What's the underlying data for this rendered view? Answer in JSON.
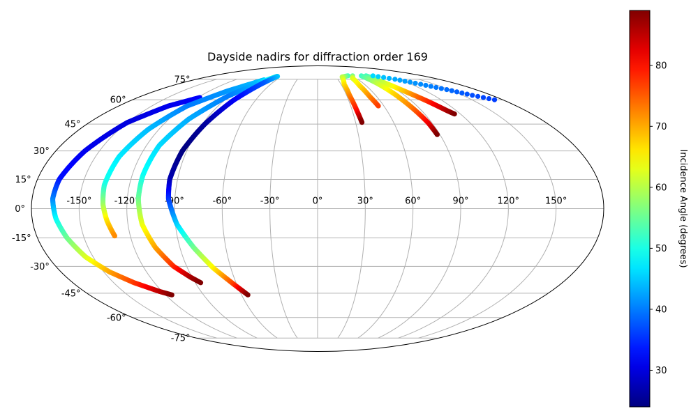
{
  "chart_data": {
    "type": "scatter",
    "projection": "mollweide",
    "title": "Dayside nadirs for diffraction order 169",
    "xlabel": "",
    "ylabel": "",
    "xlim": [
      -180,
      180
    ],
    "ylim": [
      -90,
      90
    ],
    "grid": true,
    "lon_ticks": [
      -150,
      -120,
      -90,
      -60,
      -30,
      0,
      30,
      60,
      90,
      120,
      150
    ],
    "lat_ticks": [
      -75,
      -60,
      -45,
      -30,
      -15,
      0,
      15,
      30,
      45,
      60,
      75
    ],
    "lon_tick_labels": [
      "-150°",
      "-120°",
      "-90°",
      "-60°",
      "-30°",
      "0°",
      "30°",
      "60°",
      "90°",
      "120°",
      "150°"
    ],
    "lat_tick_labels": [
      "-75°",
      "-60°",
      "-45°",
      "-30°",
      "-15°",
      "0°",
      "15°",
      "30°",
      "45°",
      "60°",
      "75°"
    ],
    "colorbar": {
      "label": "Incidence Angle (degrees)",
      "colormap": "jet",
      "min": 24,
      "max": 89,
      "ticks": [
        30,
        40,
        50,
        60,
        70,
        80
      ],
      "tick_labels": [
        "30",
        "40",
        "50",
        "60",
        "70",
        "80"
      ]
    },
    "series": [
      {
        "points": [
          [
            -118,
            61.5,
            32
          ],
          [
            -135,
            56,
            31
          ],
          [
            -150,
            46,
            30
          ],
          [
            -160,
            30,
            31
          ],
          [
            -166,
            15,
            33
          ],
          [
            -167,
            5,
            40
          ],
          [
            -165,
            -5,
            48
          ],
          [
            -161,
            -15,
            55
          ],
          [
            -155,
            -25,
            62
          ],
          [
            -146,
            -33,
            70
          ],
          [
            -135,
            -39,
            77
          ],
          [
            -122,
            -44,
            85
          ],
          [
            -115,
            -46,
            89
          ]
        ]
      },
      {
        "points": [
          [
            -78,
            74.5,
            45
          ],
          [
            -100,
            66,
            42
          ],
          [
            -118,
            56,
            40
          ],
          [
            -128,
            42,
            44
          ],
          [
            -134,
            27,
            47
          ],
          [
            -136,
            12,
            50
          ],
          [
            -135,
            2,
            58
          ],
          [
            -133,
            -6,
            66
          ],
          [
            -130,
            -14,
            72
          ]
        ]
      },
      {
        "points": [
          [
            -68,
            77.5,
            52
          ],
          [
            -80,
            71,
            44
          ],
          [
            -92,
            62,
            40
          ],
          [
            -104,
            48,
            43
          ],
          [
            -111,
            33,
            46
          ],
          [
            -113,
            17,
            49
          ],
          [
            -113,
            5,
            55
          ],
          [
            -111,
            -8,
            63
          ],
          [
            -106,
            -20,
            70
          ],
          [
            -99,
            -30,
            78
          ],
          [
            -91,
            -36,
            86
          ],
          [
            -86,
            -39,
            89
          ]
        ]
      },
      {
        "points": [
          [
            -67,
            77.5,
            45
          ],
          [
            -72,
            72,
            38
          ],
          [
            -81,
            60,
            32
          ],
          [
            -88,
            45,
            26
          ],
          [
            -93,
            30,
            24
          ],
          [
            -95,
            15,
            27
          ],
          [
            -94,
            5,
            35
          ],
          [
            -89,
            -8,
            45
          ],
          [
            -81,
            -20,
            55
          ],
          [
            -72,
            -31,
            65
          ],
          [
            -62,
            -40,
            77
          ],
          [
            -55,
            -46,
            89
          ]
        ]
      },
      {
        "points": [
          [
            52,
            78,
            52
          ],
          [
            40,
            77,
            60
          ],
          [
            34,
            71,
            66
          ],
          [
            33,
            63,
            72
          ],
          [
            34,
            53,
            80
          ],
          [
            35,
            46,
            89
          ]
        ]
      },
      {
        "points": [
          [
            60,
            78,
            55
          ],
          [
            54,
            76,
            62
          ],
          [
            52,
            70,
            66
          ],
          [
            53,
            62,
            72
          ],
          [
            55,
            56,
            77
          ]
        ]
      },
      {
        "points": [
          [
            83,
            78,
            52
          ],
          [
            88,
            73,
            60
          ],
          [
            96,
            66,
            68
          ],
          [
            105,
            59,
            78
          ],
          [
            112,
            53,
            86
          ],
          [
            115,
            51,
            89
          ]
        ]
      },
      {
        "points": [
          [
            75,
            78,
            52
          ],
          [
            78,
            72,
            60
          ],
          [
            81,
            64,
            67
          ],
          [
            84,
            55,
            73
          ],
          [
            87,
            46,
            81
          ],
          [
            88,
            39,
            89
          ]
        ]
      },
      {
        "points": [
          [
            95,
            78,
            46
          ],
          [
            115,
            75,
            43
          ],
          [
            132,
            71,
            41
          ],
          [
            147,
            67,
            39
          ],
          [
            160,
            63,
            37
          ],
          [
            172,
            60,
            36
          ]
        ]
      }
    ]
  }
}
